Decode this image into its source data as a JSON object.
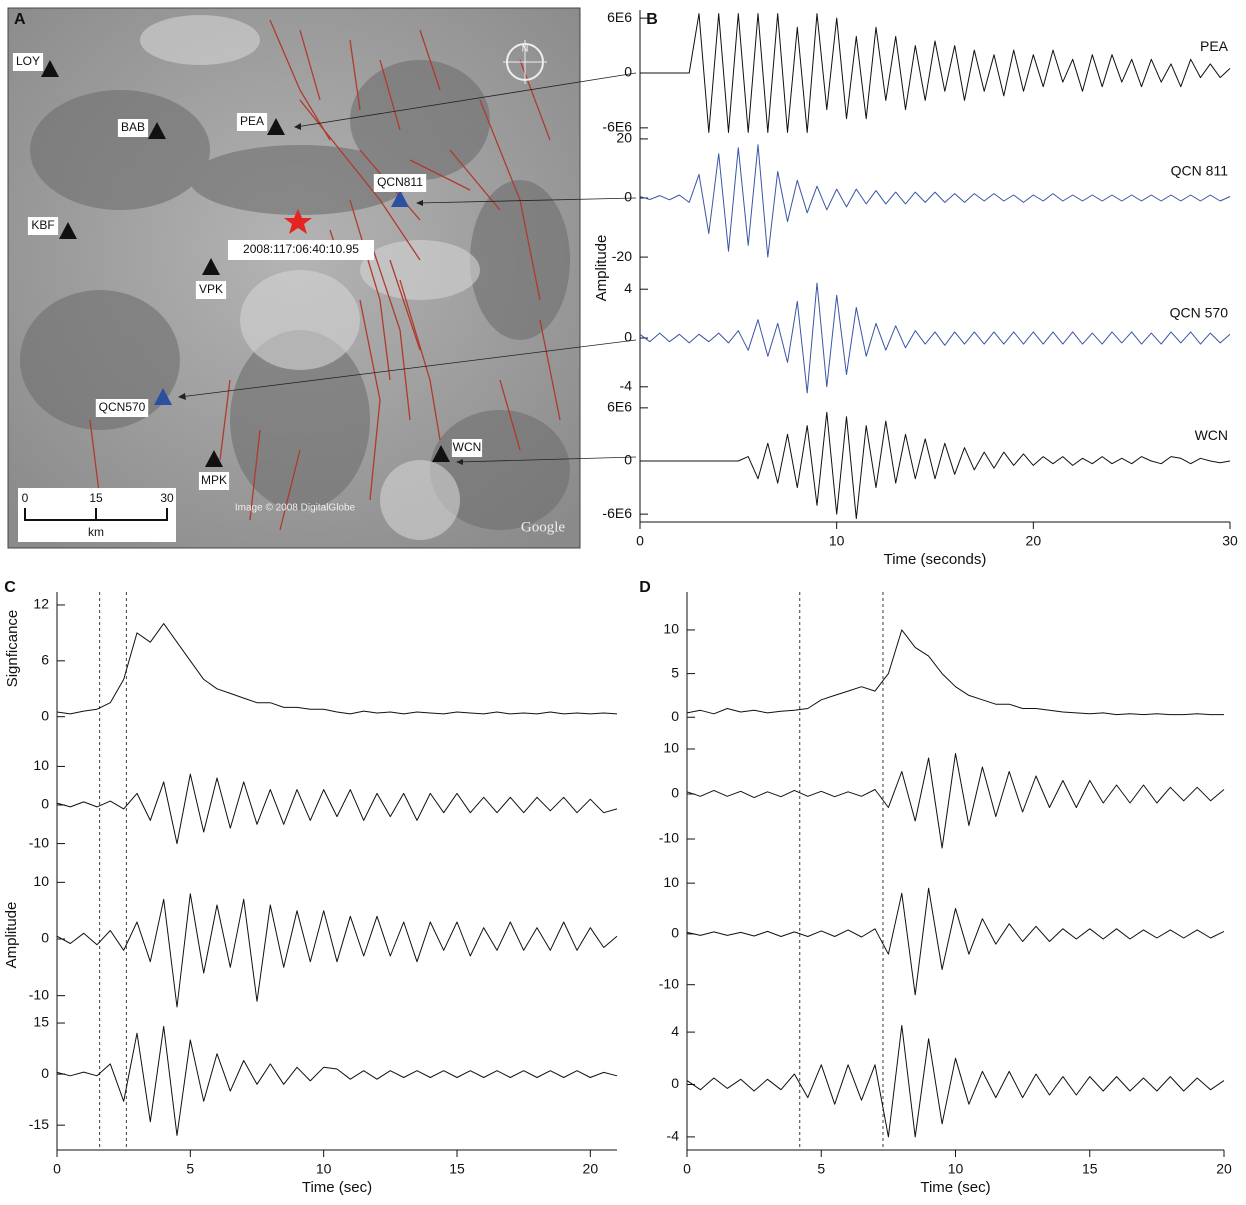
{
  "map": {
    "label": "A",
    "stations": [
      "LOY",
      "BAB",
      "PEA",
      "QCN811",
      "KBF",
      "VPK",
      "QCN570",
      "MPK",
      "WCN"
    ],
    "event": "2008:117:06:40:10.95",
    "scale_ticks": [
      0,
      15,
      30
    ],
    "scale_unit": "km",
    "credit": "Image © 2008 DigitalGlobe",
    "logo": "Google",
    "compass": "N"
  },
  "chart_data": [
    {
      "type": "line",
      "label": "B",
      "xlabel": "Time (seconds)",
      "ylabel": "Amplitude",
      "xlim": [
        0,
        30
      ],
      "xticks": [
        0,
        10,
        20,
        30
      ],
      "x": [
        0,
        0.5,
        1,
        1.5,
        2,
        2.5,
        3,
        3.5,
        4,
        4.5,
        5,
        5.5,
        6,
        6.5,
        7,
        7.5,
        8,
        8.5,
        9,
        9.5,
        10,
        10.5,
        11,
        11.5,
        12,
        12.5,
        13,
        13.5,
        14,
        14.5,
        15,
        15.5,
        16,
        16.5,
        17,
        17.5,
        18,
        18.5,
        19,
        19.5,
        20,
        20.5,
        21,
        21.5,
        22,
        22.5,
        23,
        23.5,
        24,
        24.5,
        25,
        25.5,
        26,
        26.5,
        27,
        27.5,
        28,
        28.5,
        29,
        29.5,
        30
      ],
      "series": [
        {
          "name": "PEA",
          "color": "#111111",
          "ylim": [
            -7000000.0,
            7000000.0
          ],
          "yticks": [
            {
              "value": 6000000.0,
              "label": "6E6"
            },
            0,
            {
              "value": -6000000.0,
              "label": "-6E6"
            }
          ],
          "values": [
            0,
            0,
            0,
            0,
            0,
            0,
            6500000.0,
            -6500000.0,
            6500000.0,
            -6500000.0,
            6500000.0,
            -6500000.0,
            6500000.0,
            -6500000.0,
            6500000.0,
            -6500000.0,
            5000000.0,
            -6500000.0,
            6500000.0,
            -4000000.0,
            6000000.0,
            -5000000.0,
            4000000.0,
            -5000000.0,
            5000000.0,
            -3000000.0,
            4000000.0,
            -4000000.0,
            3000000.0,
            -3000000.0,
            3500000.0,
            -2000000.0,
            3000000.0,
            -3000000.0,
            2500000.0,
            -2000000.0,
            2000000.0,
            -2500000.0,
            2500000.0,
            -2000000.0,
            2000000.0,
            -1500000.0,
            2500000.0,
            -1000000.0,
            1500000.0,
            -2000000.0,
            2000000.0,
            -1500000.0,
            2000000.0,
            -1000000.0,
            1500000.0,
            -1500000.0,
            1500000.0,
            -1000000.0,
            1000000.0,
            -1500000.0,
            1500000.0,
            -500000.0,
            1000000.0,
            -500000.0,
            500000.0
          ]
        },
        {
          "name": "QCN 811",
          "color": "#3a56a5",
          "ylim": [
            -22,
            22
          ],
          "yticks": [
            20,
            0,
            -20
          ],
          "values": [
            0.5,
            -0.5,
            0.8,
            -0.6,
            1,
            -1.5,
            8,
            -12,
            15,
            -18,
            17,
            -16,
            18,
            -20,
            9,
            -8,
            6,
            -5,
            4,
            -4,
            3,
            -3,
            3,
            -2,
            2.5,
            -2,
            2,
            -2,
            2,
            -1.5,
            2,
            -1.5,
            1.5,
            -1.5,
            1.5,
            -1,
            1.5,
            -1,
            1,
            -1.5,
            1,
            -1,
            1.5,
            -1,
            1,
            -1,
            1,
            -1,
            1,
            -1,
            1,
            -1,
            1,
            -1,
            1,
            -1,
            1,
            -1,
            1,
            -1,
            0.5
          ]
        },
        {
          "name": "QCN 570",
          "color": "#3a56a5",
          "ylim": [
            -5,
            5
          ],
          "yticks": [
            4,
            0,
            -4
          ],
          "values": [
            0.3,
            -0.3,
            0.4,
            -0.3,
            0.3,
            -0.4,
            0.3,
            -0.3,
            0.4,
            -0.4,
            0.6,
            -1,
            1.5,
            -1.5,
            1.2,
            -2,
            3,
            -4.5,
            4.5,
            -4,
            3.5,
            -3,
            2.5,
            -1.5,
            1.2,
            -1,
            1,
            -0.8,
            0.6,
            -0.5,
            0.5,
            -0.6,
            0.5,
            -0.5,
            0.5,
            -0.5,
            0.5,
            -0.5,
            0.5,
            -0.5,
            0.5,
            -0.5,
            0.5,
            -0.5,
            0.5,
            -0.5,
            0.4,
            -0.5,
            0.5,
            -0.4,
            0.5,
            -0.5,
            0.4,
            -0.5,
            0.5,
            -0.4,
            0.5,
            -0.5,
            0.4,
            -0.4,
            0.3
          ]
        },
        {
          "name": "WCN",
          "color": "#111111",
          "ylim": [
            -7000000.0,
            7000000.0
          ],
          "yticks": [
            {
              "value": 6000000.0,
              "label": "6E6"
            },
            0,
            {
              "value": -6000000.0,
              "label": "-6E6"
            }
          ],
          "values": [
            0,
            0,
            0,
            0,
            0,
            0,
            0,
            0,
            0,
            0,
            0,
            500000.0,
            -2000000.0,
            2000000.0,
            -2500000.0,
            3000000.0,
            -3000000.0,
            4000000.0,
            -5000000.0,
            5500000.0,
            -6000000.0,
            5000000.0,
            -6500000.0,
            4000000.0,
            -3000000.0,
            4500000.0,
            -2500000.0,
            3000000.0,
            -2000000.0,
            2500000.0,
            -2000000.0,
            2000000.0,
            -1500000.0,
            1500000.0,
            -1000000.0,
            1000000.0,
            -800000.0,
            1000000.0,
            -500000.0,
            800000.0,
            -500000.0,
            500000.0,
            -300000.0,
            500000.0,
            -500000.0,
            300000.0,
            -300000.0,
            500000.0,
            -300000.0,
            300000.0,
            -300000.0,
            500000.0,
            0,
            -300000.0,
            500000.0,
            300000.0,
            -300000.0,
            300000.0,
            0,
            -200000.0,
            0
          ]
        }
      ]
    },
    {
      "type": "line",
      "label": "C",
      "xlabel": "Time (sec)",
      "ylabel": "Amplitude",
      "xlim": [
        0,
        21
      ],
      "xticks": [
        0,
        5,
        10,
        15,
        20
      ],
      "vlines": [
        1.6,
        2.6
      ],
      "x": [
        0,
        0.5,
        1,
        1.5,
        2,
        2.5,
        3,
        3.5,
        4,
        4.5,
        5,
        5.5,
        6,
        6.5,
        7,
        7.5,
        8,
        8.5,
        9,
        9.5,
        10,
        10.5,
        11,
        11.5,
        12,
        12.5,
        13,
        13.5,
        14,
        14.5,
        15,
        15.5,
        16,
        16.5,
        17,
        17.5,
        18,
        18.5,
        19,
        19.5,
        20,
        20.5,
        21
      ],
      "series": [
        {
          "ylabel": "Signficance",
          "color": "#111111",
          "ylim": [
            -1,
            13.5
          ],
          "yticks": [
            12,
            6,
            0
          ],
          "values": [
            0.5,
            0.3,
            0.6,
            0.8,
            1.5,
            4,
            9,
            8,
            10,
            8,
            6,
            4,
            3,
            2.5,
            2,
            1.5,
            1.5,
            1,
            1,
            0.8,
            0.8,
            0.5,
            0.3,
            0.6,
            0.4,
            0.5,
            0.3,
            0.5,
            0.4,
            0.3,
            0.5,
            0.4,
            0.3,
            0.5,
            0.3,
            0.4,
            0.3,
            0.5,
            0.3,
            0.4,
            0.3,
            0.4,
            0.3
          ]
        },
        {
          "color": "#111111",
          "ylim": [
            -14,
            14
          ],
          "yticks": [
            10,
            0,
            -10
          ],
          "values": [
            0.5,
            -0.5,
            0.8,
            -0.5,
            1,
            -1,
            3,
            -4,
            6,
            -10,
            8,
            -7,
            7,
            -6,
            6,
            -5,
            4,
            -5,
            4,
            -4,
            4,
            -3,
            4,
            -4,
            3,
            -3,
            3,
            -4,
            3,
            -2,
            3,
            -2,
            2,
            -2,
            2,
            -2,
            2,
            -1.5,
            2,
            -2,
            1.5,
            -2,
            -1
          ]
        },
        {
          "color": "#111111",
          "ylim": [
            -12,
            12
          ],
          "yticks": [
            10,
            0,
            -10
          ],
          "values": [
            0.5,
            -0.8,
            1,
            -1,
            1.5,
            -2,
            3,
            -4,
            7,
            -12,
            8,
            -6,
            6,
            -5,
            7,
            -11,
            6,
            -5,
            5,
            -4,
            5,
            -4,
            4,
            -3,
            4,
            -3,
            3,
            -4,
            3,
            -2,
            3,
            -3,
            2,
            -2,
            3,
            -2,
            2,
            -2,
            3,
            -2,
            2,
            -1.5,
            0.5
          ]
        },
        {
          "color": "#111111",
          "ylim": [
            -22,
            20
          ],
          "yticks": [
            15,
            0,
            -15
          ],
          "values": [
            0.5,
            -0.5,
            0.6,
            -0.5,
            3,
            -8,
            12,
            -14,
            14,
            -18,
            10,
            -8,
            6,
            -5,
            4,
            -3,
            3,
            -3,
            2,
            -2,
            2,
            1.5,
            -1.5,
            1,
            -1.5,
            1,
            -1,
            1,
            -1,
            1,
            -1,
            1,
            -1,
            1,
            -1,
            1,
            -1,
            1,
            -1,
            1,
            -1,
            0.5,
            -0.5
          ]
        }
      ]
    },
    {
      "type": "line",
      "label": "D",
      "xlabel": "Time (sec)",
      "xlim": [
        0,
        20
      ],
      "xticks": [
        0,
        5,
        10,
        15,
        20
      ],
      "vlines": [
        4.2,
        7.3
      ],
      "x": [
        0,
        0.5,
        1,
        1.5,
        2,
        2.5,
        3,
        3.5,
        4,
        4.5,
        5,
        5.5,
        6,
        6.5,
        7,
        7.5,
        8,
        8.5,
        9,
        9.5,
        10,
        10.5,
        11,
        11.5,
        12,
        12.5,
        13,
        13.5,
        14,
        14.5,
        15,
        15.5,
        16,
        16.5,
        17,
        17.5,
        18,
        18.5,
        19,
        19.5,
        20
      ],
      "series": [
        {
          "color": "#111111",
          "ylim": [
            -1,
            14
          ],
          "yticks": [
            10,
            5,
            0
          ],
          "values": [
            0.5,
            0.8,
            0.4,
            1,
            0.6,
            0.8,
            0.5,
            0.7,
            0.8,
            1,
            2,
            2.5,
            3,
            3.5,
            3,
            5,
            10,
            8,
            7,
            5,
            3.5,
            2.5,
            2,
            1.5,
            1.5,
            1,
            1,
            0.8,
            0.6,
            0.5,
            0.4,
            0.5,
            0.3,
            0.4,
            0.3,
            0.4,
            0.3,
            0.3,
            0.4,
            0.3,
            0.3
          ]
        },
        {
          "color": "#111111",
          "ylim": [
            -14,
            14
          ],
          "yticks": [
            10,
            0,
            -10
          ],
          "values": [
            0.5,
            -0.5,
            0.8,
            -0.5,
            0.6,
            -0.8,
            0.5,
            -0.6,
            0.8,
            -0.5,
            0.6,
            -0.6,
            0.5,
            -0.5,
            1,
            -3,
            5,
            -6,
            8,
            -12,
            9,
            -7,
            6,
            -5,
            5,
            -4,
            4,
            -3,
            3,
            -3,
            3,
            -2,
            2,
            -2,
            2,
            -2,
            1.5,
            -1.5,
            1.5,
            -1.5,
            1
          ]
        },
        {
          "color": "#111111",
          "ylim": [
            -14,
            12
          ],
          "yticks": [
            10,
            0,
            -10
          ],
          "values": [
            0.3,
            -0.3,
            0.4,
            -0.3,
            0.3,
            -0.4,
            0.5,
            -0.5,
            0.4,
            -0.5,
            0.6,
            -0.5,
            0.8,
            -0.6,
            1,
            -4,
            8,
            -12,
            9,
            -7,
            5,
            -4,
            3,
            -2,
            2,
            -1.5,
            1.5,
            -1.5,
            1,
            -1,
            1,
            -1,
            1,
            -1,
            0.8,
            -0.8,
            0.8,
            -0.8,
            0.8,
            -0.8,
            0.5
          ]
        },
        {
          "color": "#111111",
          "ylim": [
            -5,
            5
          ],
          "yticks": [
            4,
            0,
            -4
          ],
          "values": [
            0.3,
            -0.4,
            0.5,
            -0.3,
            0.4,
            -0.5,
            0.4,
            -0.4,
            0.8,
            -1,
            1.5,
            -1.5,
            1.5,
            -1.2,
            1.5,
            -4,
            4.5,
            -4,
            3.5,
            -3,
            2,
            -1.5,
            1,
            -1,
            1,
            -1,
            0.8,
            -0.8,
            0.6,
            -0.8,
            0.6,
            -0.5,
            0.6,
            -0.5,
            0.5,
            -0.5,
            0.6,
            -0.5,
            0.5,
            -0.4,
            0.3
          ]
        }
      ]
    }
  ]
}
